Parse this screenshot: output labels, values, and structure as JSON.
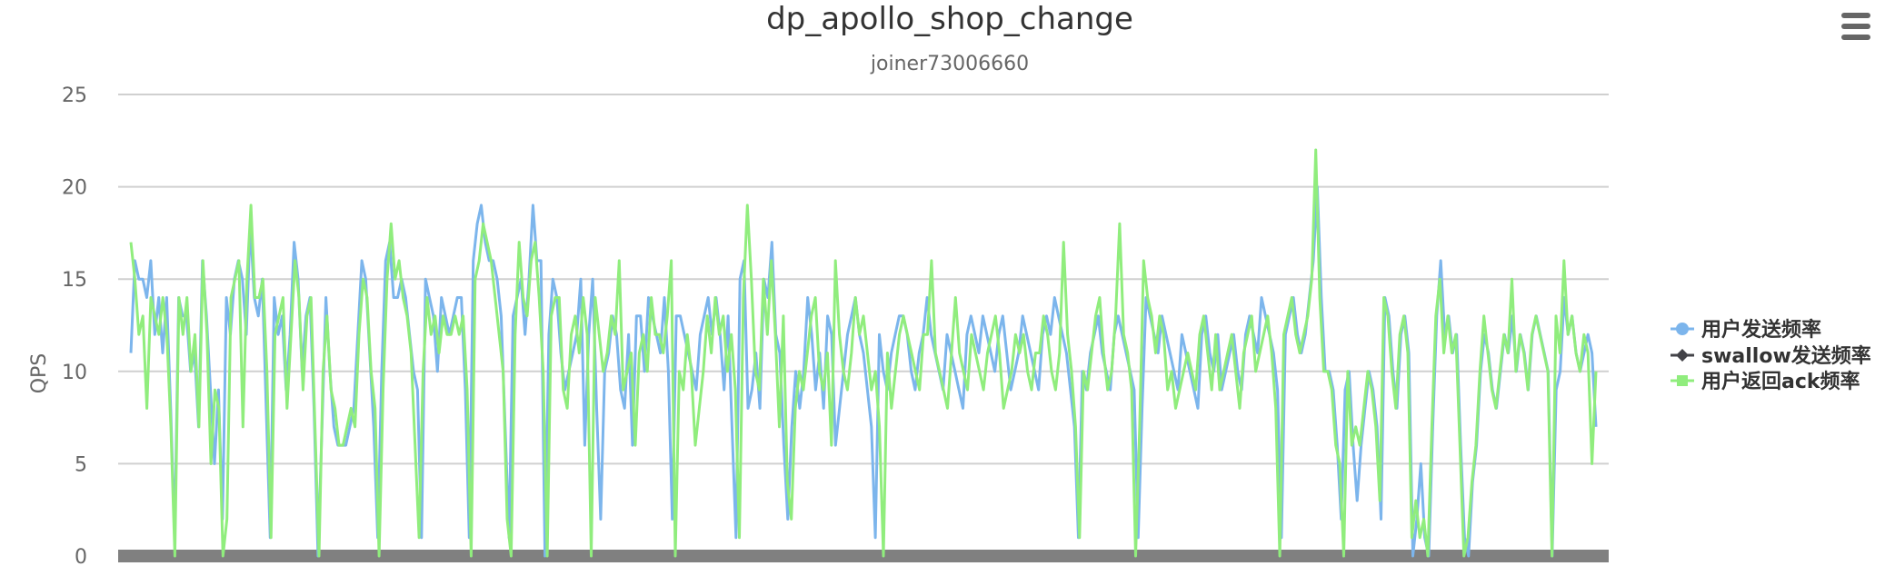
{
  "chart_data": {
    "type": "line",
    "title": "dp_apollo_shop_change",
    "subtitle": "joiner73006660",
    "ylabel": "QPS",
    "ylim": [
      0,
      25
    ],
    "yticks": [
      "0",
      "5",
      "10",
      "15",
      "20",
      "25"
    ],
    "grid": true,
    "legend_position": "right",
    "colors": {
      "series1": "#7cb5ec",
      "series2": "#434348",
      "series3": "#90ed7d"
    },
    "series": [
      {
        "name": "用户发送频率",
        "marker": "circle",
        "values": [
          11,
          16,
          15,
          15,
          14,
          16,
          12,
          14,
          11,
          14,
          8,
          1,
          14,
          13,
          13,
          10,
          11,
          7,
          16,
          13,
          9,
          5,
          9,
          2,
          14,
          12,
          15,
          16,
          15,
          12,
          18,
          14,
          13,
          15,
          8,
          1,
          14,
          12,
          13,
          9,
          12,
          17,
          15,
          10,
          13,
          14,
          8,
          0,
          7,
          14,
          10,
          7,
          6,
          6,
          6,
          7,
          8,
          12,
          16,
          15,
          11,
          7,
          1,
          10,
          16,
          17,
          14,
          14,
          15,
          14,
          12,
          10,
          9,
          1,
          15,
          14,
          13,
          10,
          14,
          13,
          12,
          13,
          14,
          14,
          9,
          1,
          16,
          18,
          19,
          17,
          16,
          16,
          15,
          13,
          7,
          1,
          13,
          14,
          15,
          12,
          15,
          19,
          16,
          16,
          0,
          12,
          15,
          14,
          11,
          9,
          10,
          11,
          12,
          15,
          6,
          12,
          15,
          8,
          2,
          10,
          11,
          13,
          12,
          9,
          8,
          12,
          6,
          13,
          13,
          10,
          14,
          13,
          12,
          11,
          14,
          10,
          2,
          13,
          13,
          12,
          11,
          10,
          9,
          12,
          13,
          14,
          12,
          14,
          12,
          9,
          13,
          7,
          1,
          15,
          16,
          8,
          9,
          11,
          8,
          15,
          14,
          17,
          12,
          11,
          6,
          2,
          7,
          10,
          8,
          10,
          14,
          12,
          9,
          11,
          8,
          13,
          12,
          6,
          8,
          10,
          12,
          13,
          14,
          12,
          11,
          9,
          7,
          1,
          12,
          10,
          9,
          11,
          12,
          13,
          13,
          12,
          10,
          9,
          11,
          12,
          14,
          12,
          11,
          10,
          9,
          12,
          11,
          10,
          9,
          8,
          12,
          13,
          12,
          11,
          13,
          12,
          11,
          10,
          12,
          13,
          11,
          9,
          10,
          11,
          13,
          12,
          11,
          10,
          9,
          12,
          13,
          12,
          14,
          13,
          12,
          11,
          9,
          7,
          1,
          10,
          9,
          11,
          12,
          13,
          11,
          10,
          9,
          12,
          13,
          12,
          11,
          10,
          9,
          1,
          8,
          14,
          13,
          12,
          11,
          13,
          12,
          11,
          10,
          9,
          12,
          11,
          10,
          9,
          8,
          12,
          13,
          11,
          10,
          12,
          9,
          10,
          11,
          12,
          10,
          9,
          12,
          13,
          12,
          11,
          14,
          13,
          12,
          11,
          9,
          1,
          12,
          13,
          14,
          12,
          11,
          12,
          14,
          16,
          20,
          14,
          10,
          10,
          9,
          6,
          2,
          9,
          10,
          6,
          3,
          6,
          8,
          10,
          9,
          7,
          2,
          14,
          13,
          10,
          8,
          12,
          13,
          11,
          0,
          2,
          5,
          1,
          0,
          7,
          13,
          16,
          12,
          13,
          11,
          12,
          6,
          1,
          0,
          4,
          6,
          10,
          12,
          11,
          9,
          8,
          10,
          12,
          11,
          13,
          10,
          12,
          11,
          9,
          12,
          13,
          12,
          11,
          10,
          0,
          9,
          10,
          14,
          12,
          13,
          11,
          10,
          11,
          12,
          11,
          7
        ]
      },
      {
        "name": "swallow发送频率",
        "marker": "diamond",
        "values": [
          0,
          0
        ]
      },
      {
        "name": "用户返回ack频率",
        "marker": "square",
        "values": [
          17,
          15,
          12,
          13,
          8,
          14,
          13,
          12,
          14,
          12,
          7,
          0,
          14,
          12,
          14,
          10,
          12,
          7,
          16,
          12,
          5,
          9,
          8,
          0,
          2,
          14,
          15,
          16,
          7,
          15,
          19,
          14,
          14,
          15,
          10,
          1,
          12,
          13,
          14,
          8,
          12,
          16,
          14,
          9,
          13,
          14,
          7,
          0,
          10,
          13,
          9,
          8,
          6,
          6,
          7,
          8,
          7,
          12,
          15,
          14,
          10,
          8,
          0,
          9,
          15,
          18,
          15,
          16,
          14,
          13,
          11,
          6,
          1,
          10,
          14,
          12,
          13,
          11,
          13,
          12,
          12,
          13,
          12,
          13,
          9,
          0,
          15,
          16,
          18,
          17,
          16,
          14,
          12,
          10,
          2,
          0,
          12,
          17,
          14,
          13,
          16,
          17,
          14,
          10,
          0,
          13,
          14,
          14,
          9,
          8,
          12,
          13,
          11,
          14,
          12,
          0,
          14,
          12,
          10,
          11,
          13,
          12,
          16,
          9,
          10,
          11,
          6,
          11,
          12,
          10,
          14,
          12,
          12,
          11,
          13,
          16,
          0,
          10,
          9,
          12,
          10,
          6,
          8,
          10,
          13,
          11,
          14,
          12,
          13,
          10,
          12,
          9,
          1,
          14,
          19,
          15,
          10,
          9,
          15,
          12,
          16,
          12,
          7,
          13,
          4,
          2,
          8,
          10,
          9,
          11,
          13,
          14,
          10,
          9,
          11,
          6,
          16,
          12,
          10,
          9,
          11,
          14,
          12,
          13,
          11,
          9,
          10,
          7,
          0,
          11,
          8,
          10,
          12,
          13,
          12,
          11,
          10,
          9,
          12,
          12,
          16,
          11,
          10,
          9,
          8,
          11,
          14,
          11,
          10,
          9,
          12,
          11,
          10,
          9,
          11,
          12,
          13,
          11,
          8,
          9,
          10,
          12,
          11,
          12,
          10,
          9,
          11,
          11,
          13,
          12,
          10,
          9,
          11,
          17,
          12,
          10,
          7,
          1,
          10,
          9,
          11,
          13,
          14,
          11,
          9,
          10,
          13,
          18,
          12,
          11,
          9,
          0,
          7,
          16,
          14,
          13,
          11,
          13,
          12,
          9,
          10,
          8,
          9,
          10,
          11,
          10,
          9,
          12,
          13,
          11,
          9,
          12,
          9,
          10,
          11,
          12,
          10,
          8,
          11,
          12,
          13,
          10,
          11,
          12,
          13,
          11,
          8,
          0,
          12,
          13,
          14,
          12,
          11,
          12,
          13,
          15,
          22,
          14,
          10,
          10,
          9,
          6,
          5,
          0,
          10,
          6,
          7,
          6,
          8,
          10,
          9,
          7,
          3,
          14,
          13,
          10,
          8,
          12,
          13,
          11,
          1,
          3,
          1,
          2,
          0,
          7,
          13,
          15,
          11,
          13,
          11,
          12,
          6,
          0,
          1,
          4,
          6,
          10,
          13,
          11,
          9,
          8,
          10,
          12,
          11,
          15,
          10,
          12,
          11,
          9,
          12,
          13,
          12,
          11,
          10,
          0,
          13,
          11,
          16,
          12,
          13,
          11,
          10,
          12,
          11,
          5,
          10
        ]
      }
    ]
  }
}
